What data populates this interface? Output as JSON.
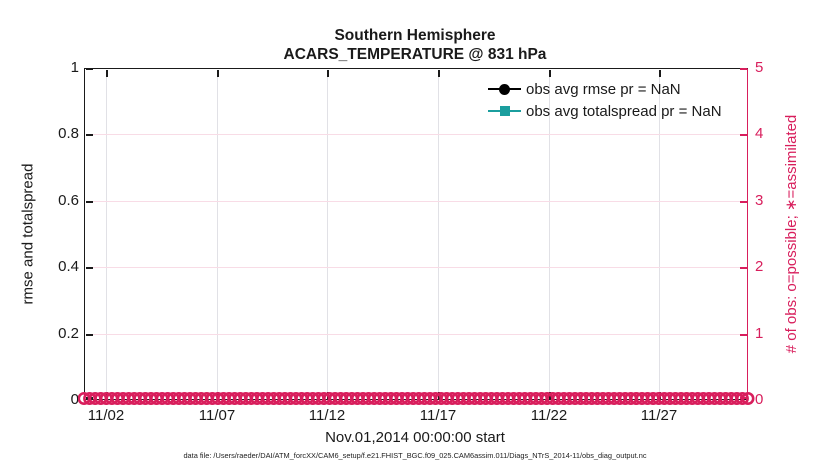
{
  "title": {
    "line1": "Southern Hemisphere",
    "line2": "ACARS_TEMPERATURE @ 831 hPa"
  },
  "axes": {
    "left": {
      "label": "rmse and totalspread",
      "ticks": [
        "1",
        "0.8",
        "0.6",
        "0.4",
        "0.2",
        "0"
      ]
    },
    "right": {
      "label": "# of obs: o=possible; ∗=assimilated",
      "ticks": [
        "5",
        "4",
        "3",
        "2",
        "1",
        "0"
      ],
      "color": "#d81e5c"
    },
    "x": {
      "label": "Nov.01,2014 00:00:00 start",
      "ticks": [
        "11/02",
        "11/07",
        "11/12",
        "11/17",
        "11/22",
        "11/27"
      ]
    }
  },
  "legend": {
    "items": [
      {
        "label": "obs avg rmse pr = NaN",
        "color": "#000000",
        "marker": "circle"
      },
      {
        "label": "obs avg totalspread pr = NaN",
        "color": "#1b9e9e",
        "marker": "square"
      }
    ]
  },
  "caption": "data file: /Users/raeder/DAI/ATM_forcXX/CAM6_setup/f.e21.FHIST_BGC.f09_025.CAM6assim.011/Diags_NTrS_2014-11/obs_diag_output.nc",
  "chart_data": {
    "type": "line",
    "title": "Southern Hemisphere — ACARS_TEMPERATURE @ 831 hPa",
    "x_axis": {
      "label": "Nov.01,2014 00:00:00 start",
      "range_days": [
        "11/01",
        "12/01"
      ],
      "tick_labels": [
        "11/02",
        "11/07",
        "11/12",
        "11/17",
        "11/22",
        "11/27"
      ],
      "tick_interval_days": 5
    },
    "y_left": {
      "label": "rmse and totalspread",
      "lim": [
        0,
        1
      ],
      "ticks": [
        0,
        0.2,
        0.4,
        0.6,
        0.8,
        1
      ]
    },
    "y_right": {
      "label": "# of obs: o=possible; ∗=assimilated",
      "lim": [
        0,
        5
      ],
      "ticks": [
        0,
        1,
        2,
        3,
        4,
        5
      ]
    },
    "grid": true,
    "legend_position": "inside-top-right",
    "series": [
      {
        "name": "obs avg rmse pr = NaN",
        "type": "line",
        "marker": "filled-circle",
        "color": "#000000",
        "values": "all NaN (nothing plotted)"
      },
      {
        "name": "obs avg totalspread pr = NaN",
        "type": "line",
        "marker": "filled-square",
        "color": "#1b9e9e",
        "values": "all NaN (nothing plotted)"
      },
      {
        "name": "# of obs possible",
        "type": "markers",
        "marker": "open-circle",
        "color": "#d81e5c",
        "axis": "right",
        "y_value": 0,
        "n_markers": 120
      }
    ]
  }
}
